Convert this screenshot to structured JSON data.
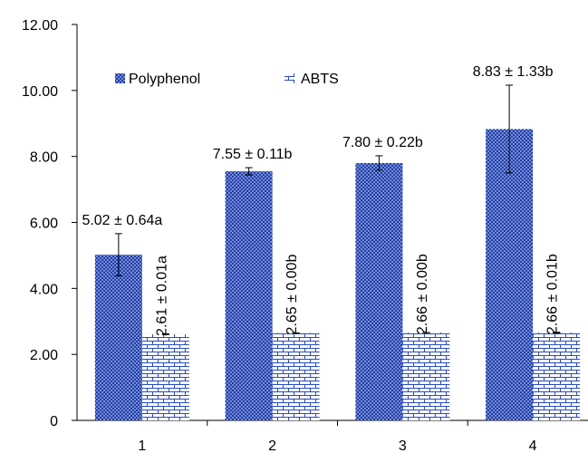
{
  "chart_data": {
    "type": "bar",
    "categories": [
      "1",
      "2",
      "3",
      "4"
    ],
    "series": [
      {
        "name": "Polyphenol",
        "values": [
          5.02,
          7.55,
          7.8,
          8.83
        ],
        "errors": [
          0.64,
          0.11,
          0.22,
          1.33
        ],
        "labels": [
          "5.02 ± 0.64a",
          "7.55 ± 0.11b",
          "7.80 ± 0.22b",
          "8.83 ± 1.33b"
        ],
        "color": "#1f3fae"
      },
      {
        "name": "ABTS",
        "values": [
          2.61,
          2.65,
          2.66,
          2.66
        ],
        "errors": [
          0.01,
          0.0,
          0.0,
          0.01
        ],
        "labels": [
          "2.61 ± 0.01a",
          "2.65 ± 0.00b",
          "2.66 ± 0.00b",
          "2.66 ± 0.01b"
        ],
        "color": "#1f3fae"
      }
    ],
    "yticks": [
      "0",
      "2.00",
      "4.00",
      "6.00",
      "8.00",
      "10.00",
      "12.00"
    ],
    "ylim": [
      0,
      12
    ],
    "legend_position": "top-left-inside",
    "grid": false
  }
}
